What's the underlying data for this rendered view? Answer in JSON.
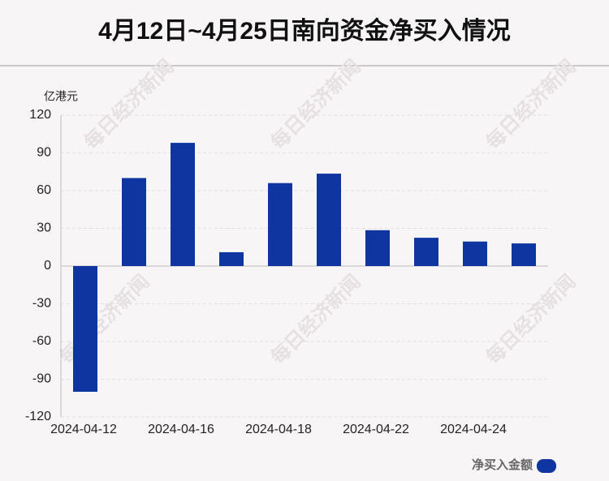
{
  "chart_data": {
    "type": "bar",
    "title": "4月12日~4月25日南向资金净买入情况",
    "y_label": "亿港元",
    "watermark": "每日经济新闻",
    "categories": [
      "2024-04-12",
      null,
      "2024-04-16",
      null,
      "2024-04-18",
      null,
      "2024-04-22",
      null,
      "2024-04-24",
      null
    ],
    "series": [
      {
        "name": "净买入金额",
        "color": "#0e35a0",
        "values": [
          -100,
          70,
          98,
          11,
          66,
          73.5,
          28.5,
          22.5,
          19.5,
          18
        ]
      }
    ],
    "ylim": [
      -120,
      120
    ],
    "yticks": [
      -120,
      -90,
      -60,
      -30,
      0,
      30,
      60,
      90,
      120
    ],
    "grid": true
  }
}
